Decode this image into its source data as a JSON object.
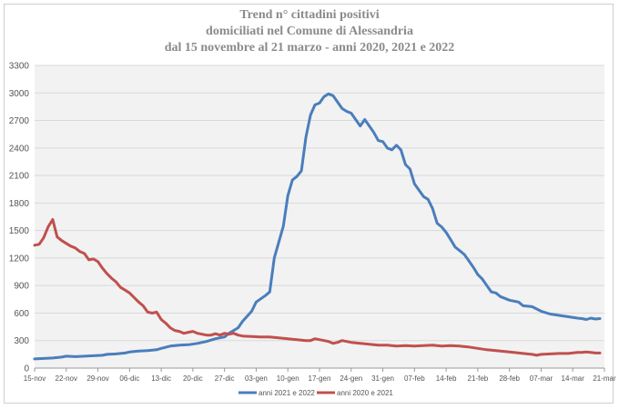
{
  "chart_data": {
    "type": "line",
    "title": [
      "Trend n° cittadini positivi",
      "domiciliati nel Comune di Alessandria",
      "dal 15 novembre al 21 marzo - anni 2020, 2021 e 2022"
    ],
    "xlabel": "",
    "ylabel": "",
    "ylim": [
      0,
      3300
    ],
    "y_ticks": [
      "0",
      "300",
      "600",
      "900",
      "1200",
      "1500",
      "1800",
      "2100",
      "2400",
      "2700",
      "3000",
      "3300"
    ],
    "x_ticks": [
      "15-nov",
      "22-nov",
      "29-nov",
      "06-dic",
      "13-dic",
      "20-dic",
      "27-dic",
      "03-gen",
      "10-gen",
      "17-gen",
      "24-gen",
      "31-gen",
      "07-feb",
      "14-feb",
      "21-feb",
      "28-feb",
      "07-mar",
      "14-mar",
      "21-mar"
    ],
    "x_range_days": [
      0,
      126
    ],
    "grid": "horizontal",
    "legend_position": "bottom",
    "series": [
      {
        "name": "anni 2021 e 2022",
        "color": "#4a7ebb",
        "points": [
          [
            0,
            100
          ],
          [
            2,
            105
          ],
          [
            4,
            110
          ],
          [
            6,
            120
          ],
          [
            7,
            130
          ],
          [
            9,
            125
          ],
          [
            11,
            130
          ],
          [
            13,
            135
          ],
          [
            15,
            140
          ],
          [
            16,
            150
          ],
          [
            18,
            155
          ],
          [
            20,
            165
          ],
          [
            21,
            175
          ],
          [
            23,
            185
          ],
          [
            25,
            190
          ],
          [
            27,
            200
          ],
          [
            28,
            215
          ],
          [
            30,
            240
          ],
          [
            32,
            250
          ],
          [
            34,
            255
          ],
          [
            36,
            270
          ],
          [
            38,
            290
          ],
          [
            40,
            320
          ],
          [
            42,
            340
          ],
          [
            43,
            380
          ],
          [
            45,
            440
          ],
          [
            46,
            510
          ],
          [
            48,
            620
          ],
          [
            49,
            720
          ],
          [
            51,
            790
          ],
          [
            52,
            830
          ],
          [
            53,
            1200
          ],
          [
            55,
            1550
          ],
          [
            56,
            1880
          ],
          [
            57,
            2050
          ],
          [
            58,
            2090
          ],
          [
            59,
            2150
          ],
          [
            60,
            2520
          ],
          [
            61,
            2760
          ],
          [
            62,
            2870
          ],
          [
            63,
            2890
          ],
          [
            64,
            2960
          ],
          [
            65,
            2990
          ],
          [
            66,
            2970
          ],
          [
            67,
            2900
          ],
          [
            68,
            2830
          ],
          [
            69,
            2800
          ],
          [
            70,
            2780
          ],
          [
            71,
            2710
          ],
          [
            72,
            2640
          ],
          [
            73,
            2710
          ],
          [
            74,
            2640
          ],
          [
            75,
            2570
          ],
          [
            76,
            2480
          ],
          [
            77,
            2470
          ],
          [
            78,
            2400
          ],
          [
            79,
            2380
          ],
          [
            80,
            2430
          ],
          [
            81,
            2380
          ],
          [
            82,
            2220
          ],
          [
            83,
            2170
          ],
          [
            84,
            2010
          ],
          [
            85,
            1940
          ],
          [
            86,
            1870
          ],
          [
            87,
            1840
          ],
          [
            88,
            1740
          ],
          [
            89,
            1580
          ],
          [
            90,
            1540
          ],
          [
            91,
            1480
          ],
          [
            92,
            1400
          ],
          [
            93,
            1320
          ],
          [
            94,
            1280
          ],
          [
            95,
            1240
          ],
          [
            96,
            1170
          ],
          [
            97,
            1100
          ],
          [
            98,
            1020
          ],
          [
            99,
            970
          ],
          [
            100,
            900
          ],
          [
            101,
            830
          ],
          [
            102,
            820
          ],
          [
            103,
            780
          ],
          [
            104,
            760
          ],
          [
            105,
            740
          ],
          [
            107,
            720
          ],
          [
            108,
            680
          ],
          [
            110,
            670
          ],
          [
            112,
            620
          ],
          [
            114,
            590
          ],
          [
            116,
            575
          ],
          [
            118,
            560
          ],
          [
            120,
            545
          ],
          [
            121,
            540
          ],
          [
            122,
            530
          ],
          [
            123,
            545
          ],
          [
            124,
            535
          ],
          [
            125,
            540
          ]
        ]
      },
      {
        "name": "anni 2020 e 2021",
        "color": "#c0504d",
        "points": [
          [
            0,
            1340
          ],
          [
            1,
            1350
          ],
          [
            2,
            1420
          ],
          [
            3,
            1540
          ],
          [
            4,
            1620
          ],
          [
            5,
            1430
          ],
          [
            6,
            1390
          ],
          [
            7,
            1360
          ],
          [
            8,
            1330
          ],
          [
            9,
            1310
          ],
          [
            10,
            1270
          ],
          [
            11,
            1250
          ],
          [
            12,
            1180
          ],
          [
            13,
            1190
          ],
          [
            14,
            1160
          ],
          [
            15,
            1090
          ],
          [
            16,
            1030
          ],
          [
            17,
            980
          ],
          [
            18,
            940
          ],
          [
            19,
            880
          ],
          [
            20,
            850
          ],
          [
            21,
            820
          ],
          [
            22,
            770
          ],
          [
            23,
            720
          ],
          [
            24,
            680
          ],
          [
            25,
            610
          ],
          [
            26,
            600
          ],
          [
            27,
            610
          ],
          [
            28,
            530
          ],
          [
            29,
            490
          ],
          [
            30,
            440
          ],
          [
            31,
            410
          ],
          [
            32,
            400
          ],
          [
            33,
            380
          ],
          [
            34,
            390
          ],
          [
            35,
            400
          ],
          [
            36,
            380
          ],
          [
            37,
            370
          ],
          [
            38,
            360
          ],
          [
            39,
            360
          ],
          [
            40,
            375
          ],
          [
            41,
            360
          ],
          [
            42,
            380
          ],
          [
            43,
            370
          ],
          [
            44,
            380
          ],
          [
            45,
            360
          ],
          [
            46,
            350
          ],
          [
            48,
            345
          ],
          [
            50,
            340
          ],
          [
            52,
            340
          ],
          [
            54,
            330
          ],
          [
            56,
            320
          ],
          [
            58,
            310
          ],
          [
            60,
            300
          ],
          [
            61,
            300
          ],
          [
            62,
            320
          ],
          [
            63,
            310
          ],
          [
            64,
            300
          ],
          [
            65,
            290
          ],
          [
            66,
            270
          ],
          [
            67,
            280
          ],
          [
            68,
            300
          ],
          [
            69,
            290
          ],
          [
            70,
            280
          ],
          [
            72,
            270
          ],
          [
            74,
            260
          ],
          [
            76,
            250
          ],
          [
            78,
            250
          ],
          [
            80,
            240
          ],
          [
            82,
            245
          ],
          [
            84,
            240
          ],
          [
            86,
            245
          ],
          [
            88,
            250
          ],
          [
            90,
            240
          ],
          [
            92,
            245
          ],
          [
            94,
            240
          ],
          [
            96,
            230
          ],
          [
            98,
            215
          ],
          [
            100,
            200
          ],
          [
            102,
            190
          ],
          [
            104,
            180
          ],
          [
            106,
            170
          ],
          [
            108,
            160
          ],
          [
            110,
            150
          ],
          [
            111,
            140
          ],
          [
            112,
            150
          ],
          [
            114,
            155
          ],
          [
            116,
            160
          ],
          [
            118,
            160
          ],
          [
            120,
            170
          ],
          [
            121,
            170
          ],
          [
            122,
            175
          ],
          [
            123,
            170
          ],
          [
            124,
            165
          ],
          [
            125,
            165
          ]
        ]
      }
    ]
  }
}
